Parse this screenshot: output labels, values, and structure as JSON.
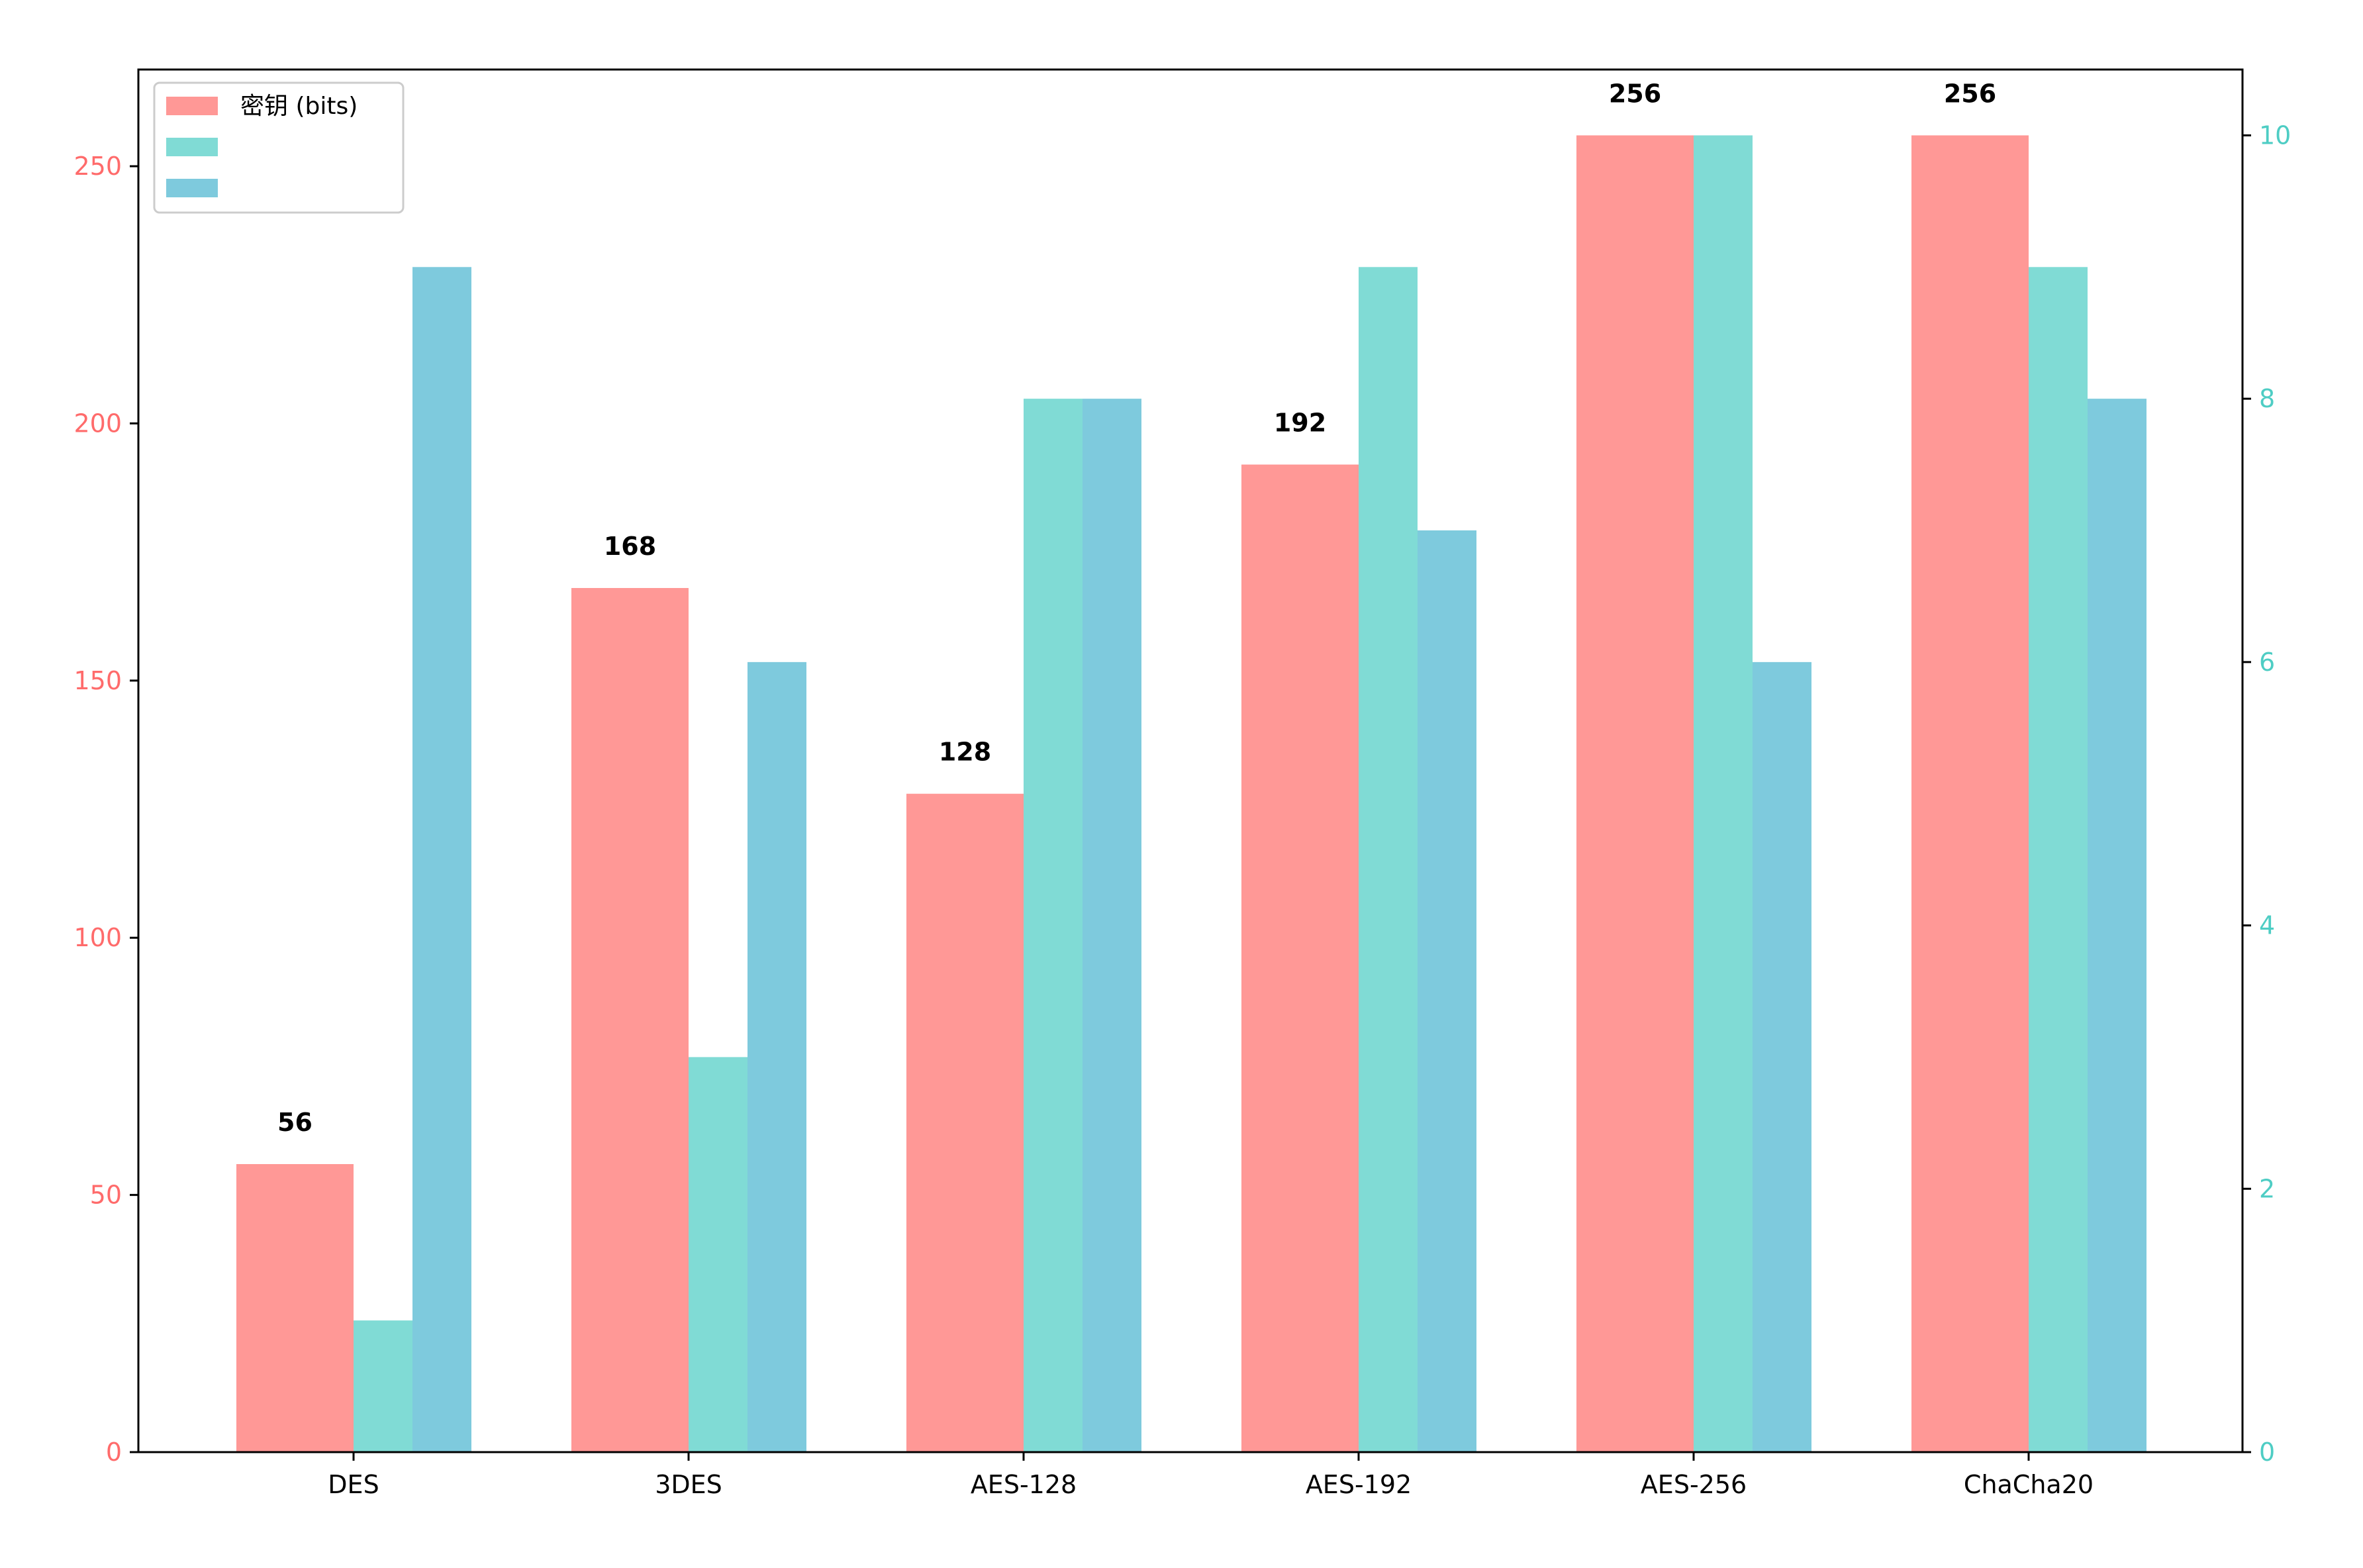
{
  "chart_data": {
    "type": "bar",
    "title": "",
    "xlabel": "",
    "ylabel_left": "",
    "ylabel_right": "",
    "categories": [
      "DES",
      "3DES",
      "AES-128",
      "AES-192",
      "AES-256",
      "ChaCha20"
    ],
    "left_axis": {
      "ylim": [
        0,
        268.8
      ],
      "ticks": [
        0,
        50,
        100,
        150,
        200,
        250
      ],
      "color": "#ff6b6b"
    },
    "right_axis": {
      "ylim": [
        0,
        10.5
      ],
      "ticks": [
        0,
        2,
        4,
        6,
        8,
        10
      ],
      "color": "#4ecdc4"
    },
    "series": [
      {
        "name": "密钥 (bits)",
        "axis": "left",
        "color": "#ff9896",
        "values": [
          56,
          168,
          128,
          192,
          256,
          256
        ],
        "show_labels": true
      },
      {
        "name": "",
        "axis": "right",
        "color": "#80dbd5",
        "values": [
          1,
          3,
          8,
          9,
          10,
          9
        ],
        "show_labels": false
      },
      {
        "name": "",
        "axis": "right",
        "color": "#7ecadd",
        "values": [
          9,
          6,
          8,
          7,
          6,
          8
        ],
        "show_labels": false
      }
    ],
    "grid": false,
    "legend_position": "top-left"
  }
}
